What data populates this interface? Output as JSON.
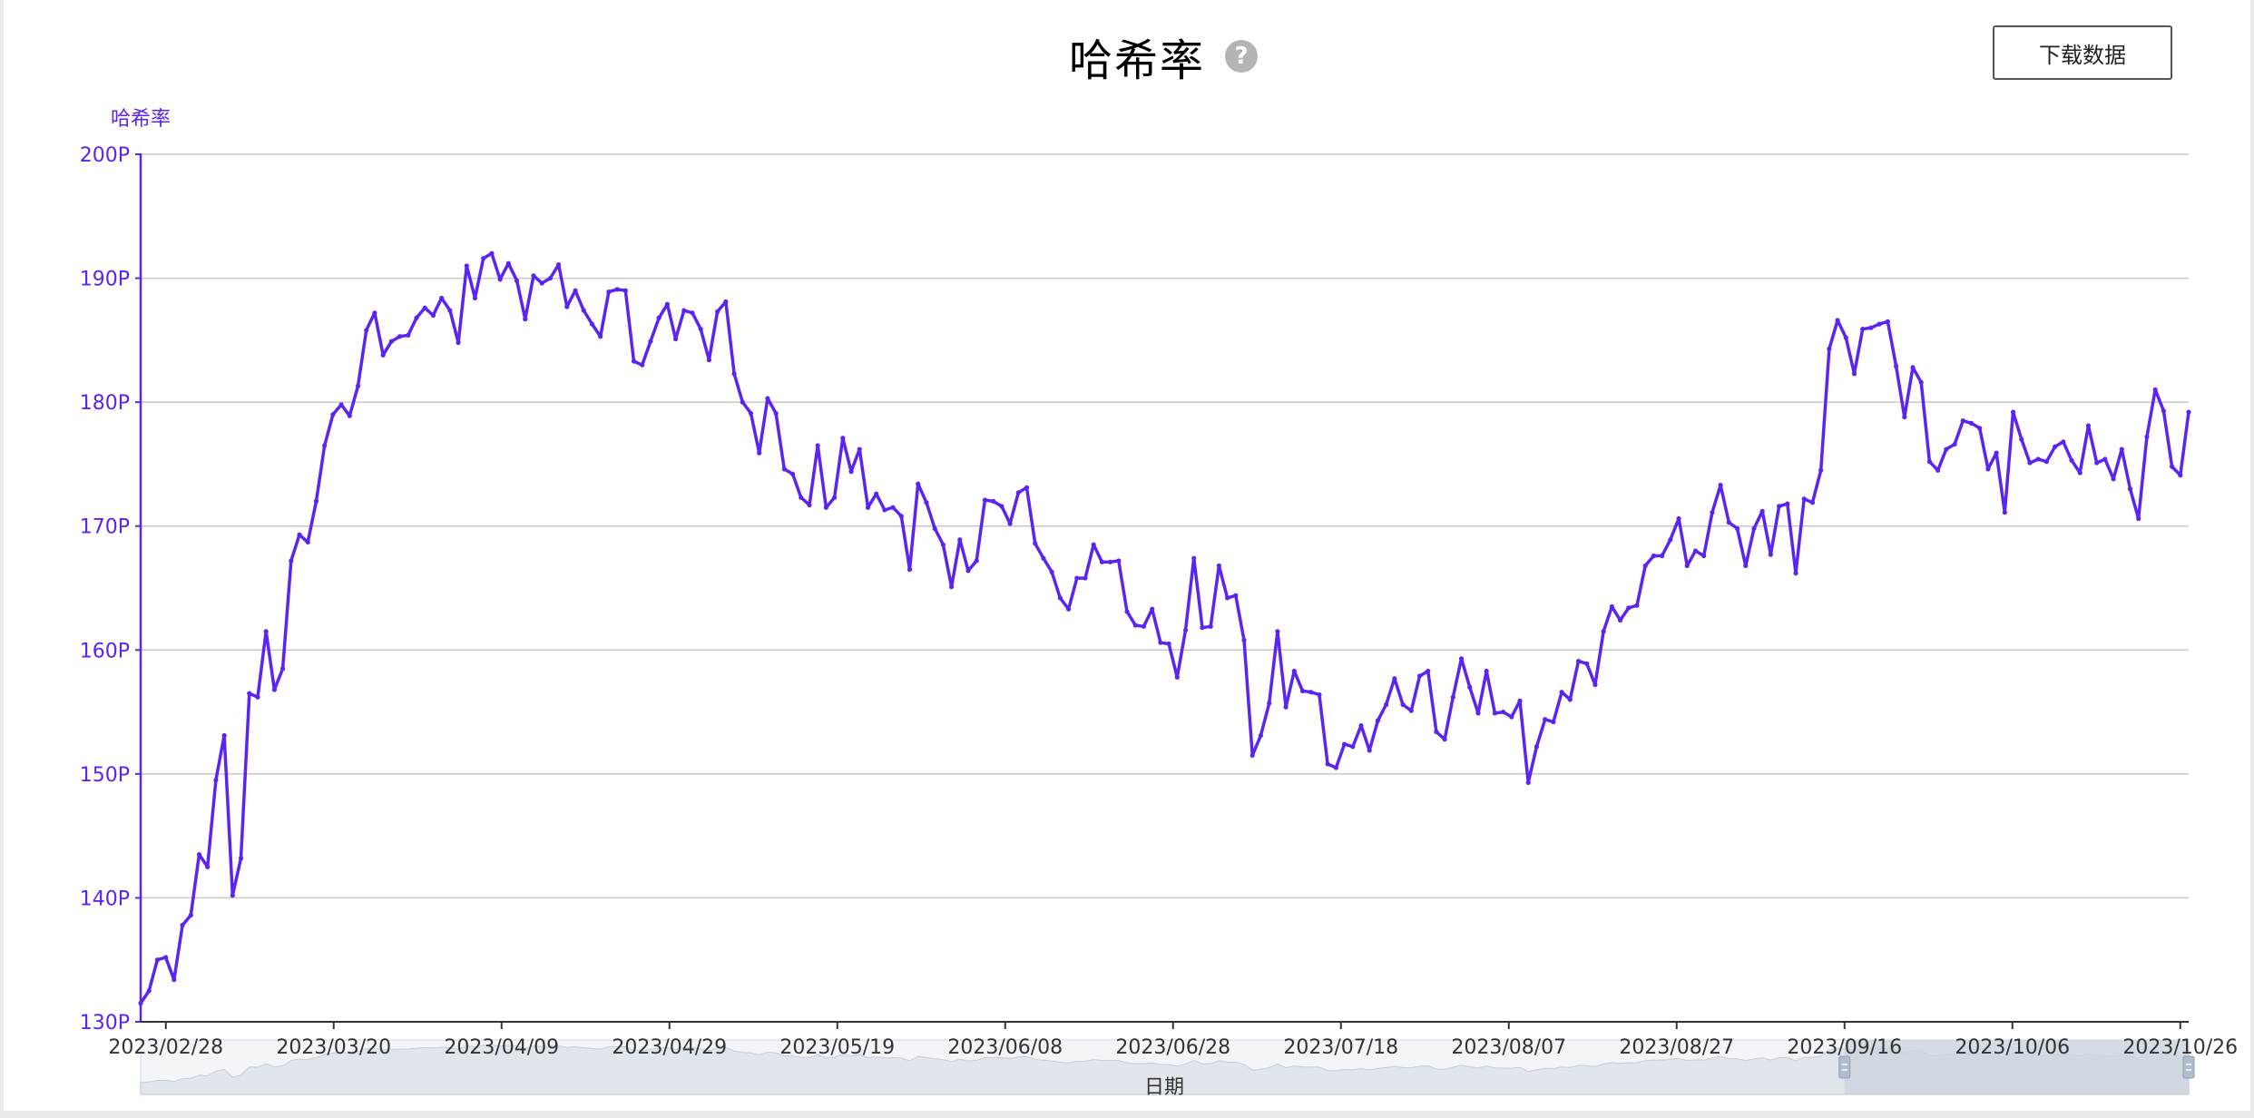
{
  "title": "哈希率",
  "download_label": "下载数据",
  "colors": {
    "series": "#5b24f0",
    "grid": "#c8c8c8",
    "axis": "#5b24f0",
    "text": "#333333",
    "slider_fill": "#c9d3df"
  },
  "chart_data": {
    "type": "line",
    "title": "哈希率",
    "ylabel": "哈希率",
    "xlabel": "日期",
    "ylim": [
      130,
      200
    ],
    "y_ticks": [
      "130P",
      "140P",
      "150P",
      "160P",
      "170P",
      "180P",
      "190P",
      "200P"
    ],
    "x_ticks": [
      "2023/02/28",
      "2023/03/20",
      "2023/04/09",
      "2023/04/29",
      "2023/05/19",
      "2023/06/08",
      "2023/06/28",
      "2023/07/18",
      "2023/08/07",
      "2023/08/27",
      "2023/09/16",
      "2023/10/06",
      "2023/10/26"
    ],
    "x_range": [
      "2023/02/25",
      "2023/10/27"
    ],
    "grid": true,
    "series": [
      {
        "values": [
          131.5,
          132.5,
          135.0,
          135.2,
          133.4,
          137.8,
          138.6,
          143.5,
          142.5,
          149.5,
          153.1,
          140.2,
          143.2,
          156.5,
          156.2,
          161.5,
          156.8,
          158.5,
          167.2,
          169.3,
          168.7,
          172.0,
          176.5,
          179.0,
          179.8,
          178.9,
          181.3,
          185.8,
          187.2,
          183.8,
          184.9,
          185.3,
          185.4,
          186.8,
          187.6,
          187.0,
          188.4,
          187.4,
          184.8,
          191.0,
          188.4,
          191.6,
          192.0,
          189.9,
          191.2,
          189.8,
          186.7,
          190.2,
          189.6,
          190.0,
          191.1,
          187.7,
          189.0,
          187.4,
          186.3,
          185.3,
          188.9,
          189.1,
          189.0,
          183.3,
          183.0,
          184.9,
          186.8,
          187.9,
          185.1,
          187.4,
          187.2,
          185.9,
          183.4,
          187.3,
          188.1,
          182.3,
          180.0,
          179.1,
          175.9,
          180.3,
          179.1,
          174.6,
          174.2,
          172.3,
          171.7,
          176.5,
          171.5,
          172.3,
          177.1,
          174.4,
          176.2,
          171.5,
          172.6,
          171.3,
          171.5,
          170.8,
          166.5,
          173.4,
          171.9,
          169.8,
          168.5,
          165.1,
          168.9,
          166.4,
          167.2,
          172.1,
          172.0,
          171.6,
          170.2,
          172.7,
          173.1,
          168.6,
          167.4,
          166.3,
          164.2,
          163.3,
          165.8,
          165.8,
          168.5,
          167.1,
          167.1,
          167.2,
          163.1,
          162.0,
          161.9,
          163.3,
          160.6,
          160.5,
          157.8,
          161.6,
          167.4,
          161.8,
          161.9,
          166.8,
          164.2,
          164.4,
          160.8,
          151.5,
          153.1,
          155.7,
          161.5,
          155.4,
          158.3,
          156.7,
          156.6,
          156.4,
          150.8,
          150.5,
          152.4,
          152.2,
          153.9,
          151.9,
          154.3,
          155.6,
          157.7,
          155.6,
          155.1,
          157.9,
          158.3,
          153.4,
          152.8,
          156.2,
          159.3,
          157.0,
          154.9,
          158.3,
          154.9,
          155.0,
          154.6,
          155.9,
          149.3,
          152.2,
          154.4,
          154.2,
          156.6,
          156.0,
          159.1,
          158.9,
          157.2,
          161.5,
          163.5,
          162.4,
          163.4,
          163.6,
          166.8,
          167.6,
          167.6,
          168.9,
          170.6,
          166.8,
          168.0,
          167.6,
          171.1,
          173.3,
          170.3,
          169.8,
          166.8,
          169.8,
          171.2,
          167.7,
          171.6,
          171.8,
          166.2,
          172.2,
          171.9,
          174.5,
          184.3,
          186.6,
          185.2,
          182.3,
          185.9,
          186.0,
          186.3,
          186.5,
          182.9,
          178.8,
          182.8,
          181.6,
          175.2,
          174.5,
          176.2,
          176.6,
          178.5,
          178.3,
          177.9,
          174.6,
          175.9,
          171.1,
          179.2,
          177.0,
          175.1,
          175.4,
          175.2,
          176.4,
          176.8,
          175.3,
          174.3,
          178.1,
          175.1,
          175.4,
          173.8,
          176.2,
          173.0,
          170.6,
          177.2,
          181.0,
          179.3,
          174.8,
          174.1,
          179.2
        ]
      }
    ]
  }
}
